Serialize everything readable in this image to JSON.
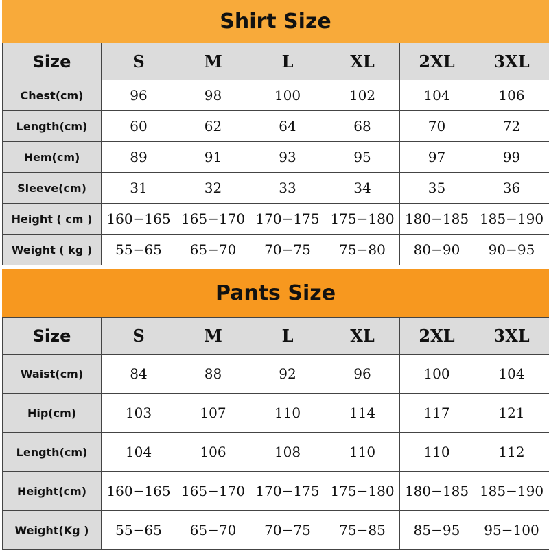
{
  "shirt": {
    "title": "Shirt Size",
    "color": "#F8AA3A",
    "header": [
      "Size",
      "S",
      "M",
      "L",
      "XL",
      "2XL",
      "3XL"
    ],
    "rows": [
      [
        "Chest(cm)",
        "96",
        "98",
        "100",
        "102",
        "104",
        "106"
      ],
      [
        "Length(cm)",
        "60",
        "62",
        "64",
        "68",
        "70",
        "72"
      ],
      [
        "Hem(cm)",
        "89",
        "91",
        "93",
        "95",
        "97",
        "99"
      ],
      [
        "Sleeve(cm)",
        "31",
        "32",
        "33",
        "34",
        "35",
        "36"
      ],
      [
        "Height ( cm )",
        "160−165",
        "165−170",
        "170−175",
        "175−180",
        "180−185",
        "185−190"
      ],
      [
        "Weight ( kg )",
        "55−65",
        "65−70",
        "70−75",
        "75−80",
        "80−90",
        "90−95"
      ]
    ]
  },
  "pants": {
    "title": "Pants Size",
    "color": "#F7981F",
    "header": [
      "Size",
      "S",
      "M",
      "L",
      "XL",
      "2XL",
      "3XL"
    ],
    "rows": [
      [
        "Waist(cm)",
        "84",
        "88",
        "92",
        "96",
        "100",
        "104"
      ],
      [
        "Hip(cm)",
        "103",
        "107",
        "110",
        "114",
        "117",
        "121"
      ],
      [
        "Length(cm)",
        "104",
        "106",
        "108",
        "110",
        "110",
        "112"
      ],
      [
        "Height(cm)",
        "160−165",
        "165−170",
        "170−175",
        "175−180",
        "180−185",
        "185−190"
      ],
      [
        "Weight(Kg )",
        "55−65",
        "65−70",
        "70−75",
        "75−85",
        "85−95",
        "95−100"
      ]
    ]
  }
}
